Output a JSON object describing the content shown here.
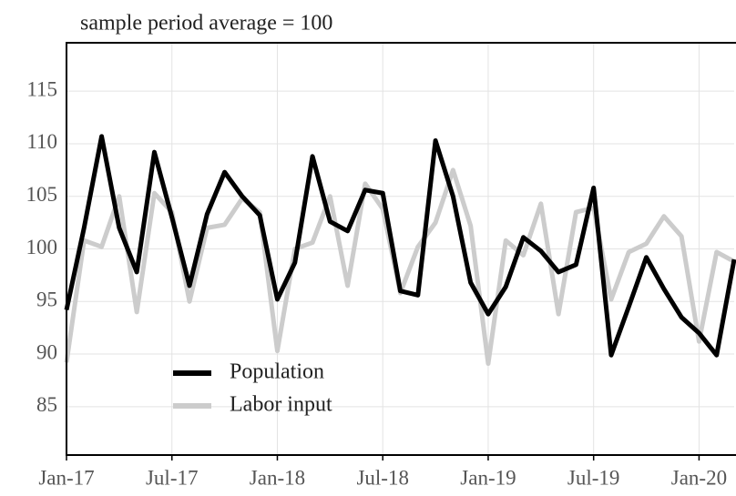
{
  "chart_data": {
    "type": "line",
    "subtitle": "sample period average = 100",
    "categories": [
      "Jan-17",
      null,
      null,
      null,
      null,
      null,
      "Jul-17",
      null,
      null,
      null,
      null,
      null,
      "Jan-18",
      null,
      null,
      null,
      null,
      null,
      "Jul-18",
      null,
      null,
      null,
      null,
      null,
      "Jan-19",
      null,
      null,
      null,
      null,
      null,
      "Jul-19",
      null,
      null,
      null,
      null,
      null,
      "Jan-20",
      null,
      null
    ],
    "series": [
      {
        "name": "Population",
        "color": "#000000",
        "values": [
          94.2,
          102,
          110.7,
          102,
          97.8,
          109.2,
          103,
          96.5,
          103.3,
          107.3,
          105,
          103.2,
          95.2,
          98.7,
          108.8,
          102.6,
          101.7,
          105.6,
          105.3,
          96,
          95.6,
          110.3,
          105,
          96.8,
          93.8,
          96.4,
          101.1,
          99.8,
          97.8,
          98.5,
          105.8,
          89.9,
          94.5,
          99.2,
          96.2,
          93.5,
          92,
          89.9,
          99
        ]
      },
      {
        "name": "Labor input",
        "color": "#cccccc",
        "values": [
          89.2,
          100.8,
          100.2,
          105,
          94,
          105.3,
          103.5,
          95,
          102,
          102.3,
          104.8,
          103.5,
          90.3,
          100,
          100.6,
          105,
          96.5,
          106.2,
          103.8,
          95.8,
          100.2,
          102.5,
          107.5,
          102.2,
          89.1,
          100.8,
          99.4,
          104.3,
          93.8,
          103.5,
          103.9,
          95.2,
          99.7,
          100.5,
          103.1,
          101.2,
          91.2,
          99.7,
          98.8
        ]
      }
    ],
    "ylim": [
      80.4,
      119.6
    ],
    "yticks": [
      85,
      90,
      95,
      100,
      105,
      110,
      115
    ],
    "grid": true,
    "legend": "lower-left"
  }
}
